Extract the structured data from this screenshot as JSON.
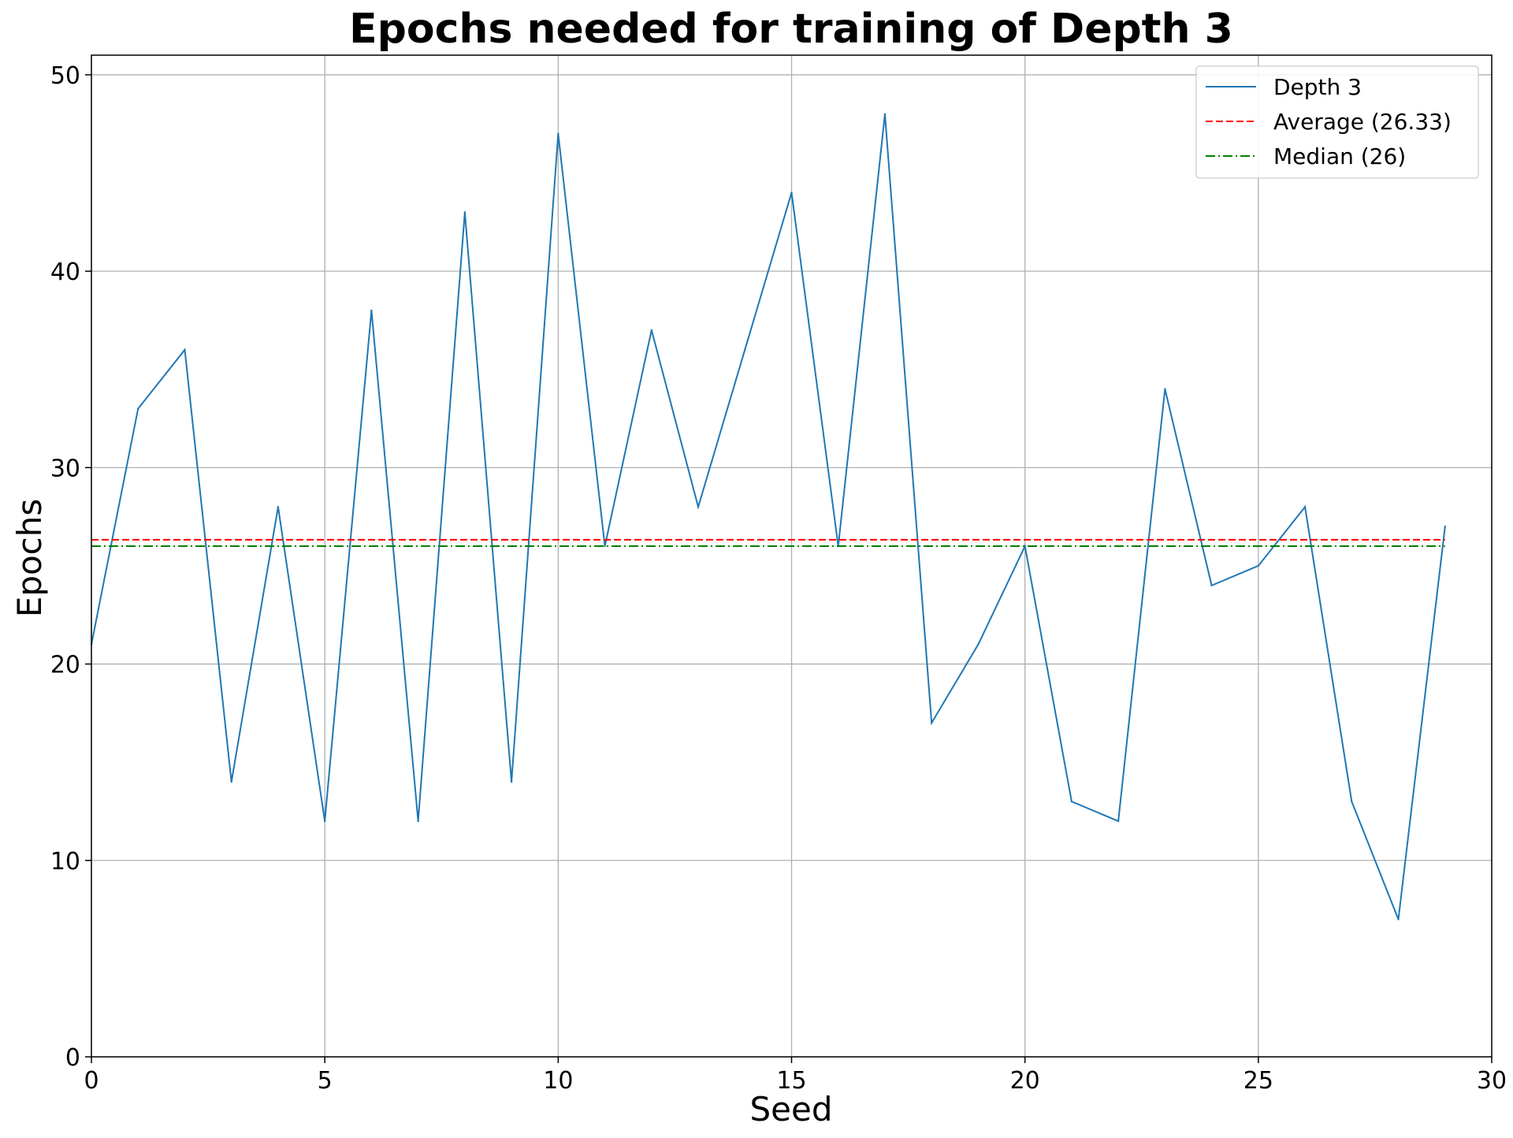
{
  "chart_data": {
    "type": "line",
    "title": "Epochs needed for training of Depth 3",
    "xlabel": "Seed",
    "ylabel": "Epochs",
    "xlim": [
      0,
      30
    ],
    "ylim": [
      0,
      51
    ],
    "xticks": [
      0,
      5,
      10,
      15,
      20,
      25,
      30
    ],
    "yticks": [
      0,
      10,
      20,
      30,
      40,
      50
    ],
    "grid": true,
    "legend_position": "top-right",
    "x": [
      0,
      1,
      2,
      3,
      4,
      5,
      6,
      7,
      8,
      9,
      10,
      11,
      12,
      13,
      14,
      15,
      16,
      17,
      18,
      19,
      20,
      21,
      22,
      23,
      24,
      25,
      26,
      27,
      28,
      29
    ],
    "series": [
      {
        "name": "Depth 3",
        "style": "solid",
        "color": "#1f77b4",
        "values": [
          21,
          33,
          36,
          14,
          28,
          12,
          38,
          12,
          43,
          14,
          47,
          26,
          37,
          28,
          36,
          44,
          26,
          48,
          17,
          21,
          26,
          13,
          12,
          34,
          24,
          25,
          28,
          13,
          7,
          27
        ]
      },
      {
        "name": "Average (26.33)",
        "style": "dashed",
        "color": "#ff0000",
        "constant": 26.33
      },
      {
        "name": "Median (26)",
        "style": "dashdot",
        "color": "#008000",
        "constant": 26
      }
    ]
  }
}
